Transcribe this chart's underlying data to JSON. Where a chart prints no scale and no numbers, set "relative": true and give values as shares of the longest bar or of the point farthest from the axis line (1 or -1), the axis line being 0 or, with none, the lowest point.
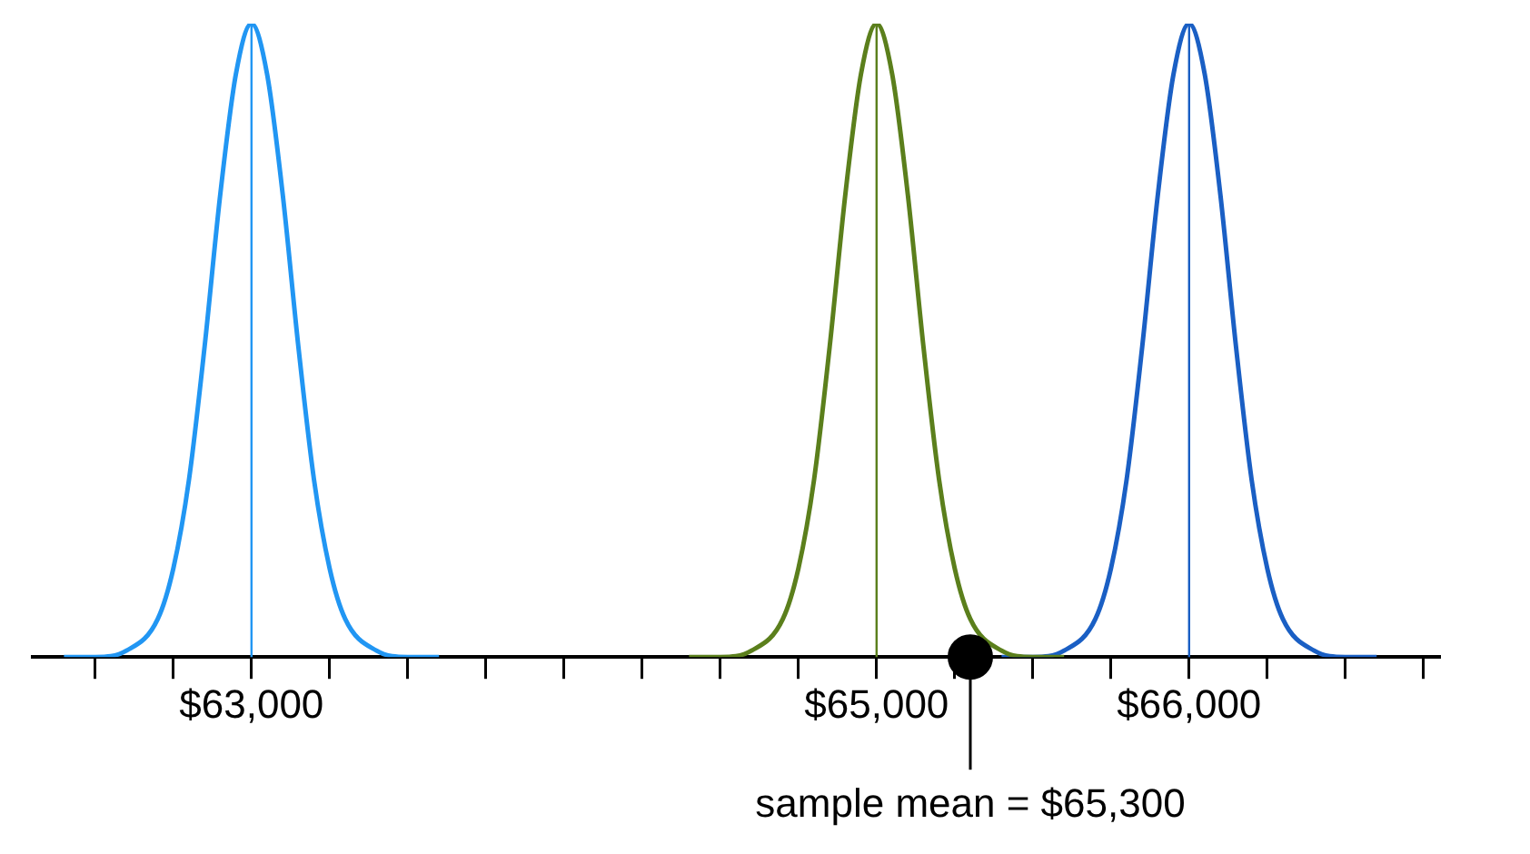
{
  "chart_data": {
    "type": "line",
    "relative": true,
    "xlim": [
      62300,
      66800
    ],
    "xticks": [
      {
        "value": 62500,
        "label": null
      },
      {
        "value": 62750,
        "label": null
      },
      {
        "value": 63000,
        "label": "$63,000"
      },
      {
        "value": 63250,
        "label": null
      },
      {
        "value": 63500,
        "label": null
      },
      {
        "value": 63750,
        "label": null
      },
      {
        "value": 64000,
        "label": null
      },
      {
        "value": 64250,
        "label": null
      },
      {
        "value": 64500,
        "label": null
      },
      {
        "value": 64750,
        "label": null
      },
      {
        "value": 65000,
        "label": "$65,000"
      },
      {
        "value": 65250,
        "label": null
      },
      {
        "value": 65500,
        "label": null
      },
      {
        "value": 65750,
        "label": null
      },
      {
        "value": 66000,
        "label": "$66,000"
      },
      {
        "value": 66250,
        "label": null
      },
      {
        "value": 66500,
        "label": null
      },
      {
        "value": 66750,
        "label": null
      }
    ],
    "series": [
      {
        "marker": "none",
        "color": "#2196f3",
        "x": [
          62400,
          62500,
          62600,
          62700,
          62750,
          62800,
          62850,
          62900,
          62950,
          63000,
          63050,
          63100,
          63150,
          63200,
          63250,
          63300,
          63400,
          63500,
          63600
        ],
        "values": [
          0,
          0,
          0.01,
          0.06,
          0.14,
          0.28,
          0.49,
          0.73,
          0.92,
          1,
          0.92,
          0.73,
          0.49,
          0.28,
          0.14,
          0.06,
          0.01,
          0,
          0
        ]
      },
      {
        "marker": "none",
        "color": "#5b7f1c",
        "x": [
          64400,
          64500,
          64600,
          64700,
          64750,
          64800,
          64850,
          64900,
          64950,
          65000,
          65050,
          65100,
          65150,
          65200,
          65250,
          65300,
          65400,
          65500,
          65600
        ],
        "values": [
          0,
          0,
          0.01,
          0.06,
          0.14,
          0.28,
          0.49,
          0.73,
          0.92,
          1,
          0.92,
          0.73,
          0.49,
          0.28,
          0.14,
          0.06,
          0.01,
          0,
          0
        ]
      },
      {
        "marker": "none",
        "color": "#1a5fc4",
        "x": [
          65400,
          65500,
          65600,
          65700,
          65750,
          65800,
          65850,
          65900,
          65950,
          66000,
          66050,
          66100,
          66150,
          66200,
          66250,
          66300,
          66400,
          66500,
          66600
        ],
        "values": [
          0,
          0,
          0.01,
          0.06,
          0.14,
          0.28,
          0.49,
          0.73,
          0.92,
          1,
          0.92,
          0.73,
          0.49,
          0.28,
          0.14,
          0.06,
          0.01,
          0,
          0
        ]
      },
      {
        "type": "scatter",
        "marker": "circle",
        "color": "#000000",
        "x": [
          65300
        ],
        "values": [
          0
        ]
      }
    ],
    "ref_lines": [
      {
        "axis": "x",
        "value": 63000,
        "color": "#2196f3"
      },
      {
        "axis": "x",
        "value": 65000,
        "color": "#5b7f1c"
      },
      {
        "axis": "x",
        "value": 66000,
        "color": "#1a5fc4"
      }
    ],
    "annotations": [
      {
        "text": "sample mean = $65,300",
        "x": 65300,
        "y": 0
      }
    ],
    "legend": false,
    "grid": false
  }
}
